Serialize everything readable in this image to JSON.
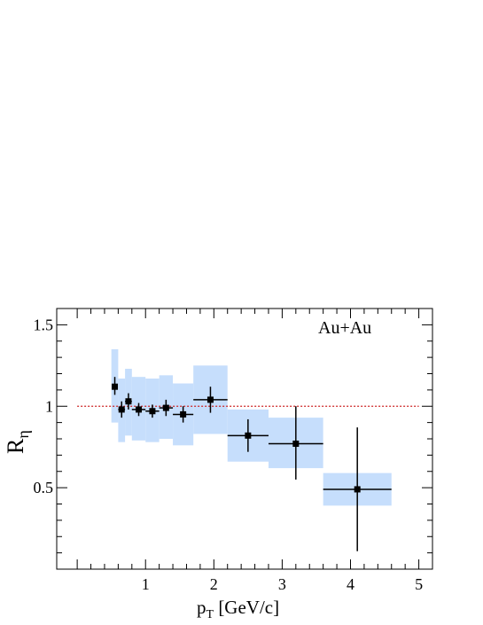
{
  "chart_data": {
    "type": "scatter",
    "annotation": "Au+Au",
    "xlabel_main": "p",
    "xlabel_sub": "T",
    "xlabel_unit": " [GeV/c]",
    "ylabel_main": "R",
    "ylabel_sub": "η",
    "xlim": [
      -0.3,
      5.2
    ],
    "ylim": [
      0.0,
      1.6
    ],
    "x_ticks": [
      1,
      2,
      3,
      4,
      5
    ],
    "x_tick_labels": [
      "1",
      "2",
      "3",
      "4",
      "5"
    ],
    "y_ticks": [
      0.5,
      1,
      1.5
    ],
    "y_tick_labels": [
      "0.5",
      "1",
      "1.5"
    ],
    "reference_line": {
      "y": 1.0,
      "x_from": 0.0,
      "x_to": 5.0,
      "color": "#cc2222"
    },
    "band_color": "#c6defc",
    "marker_color": "#000000",
    "points": [
      {
        "x": 0.55,
        "y": 1.12,
        "xerr": 0.0,
        "yerr_lo": 0.05,
        "yerr_hi": 0.06,
        "sys_lo": 0.9,
        "sys_hi": 1.35,
        "sys_w": 0.05
      },
      {
        "x": 0.65,
        "y": 0.98,
        "xerr": 0.05,
        "yerr_lo": 0.05,
        "yerr_hi": 0.05,
        "sys_lo": 0.78,
        "sys_hi": 1.17,
        "sys_w": 0.05
      },
      {
        "x": 0.75,
        "y": 1.03,
        "xerr": 0.05,
        "yerr_lo": 0.05,
        "yerr_hi": 0.05,
        "sys_lo": 0.82,
        "sys_hi": 1.23,
        "sys_w": 0.05
      },
      {
        "x": 0.9,
        "y": 0.98,
        "xerr": 0.1,
        "yerr_lo": 0.04,
        "yerr_hi": 0.04,
        "sys_lo": 0.79,
        "sys_hi": 1.18,
        "sys_w": 0.1
      },
      {
        "x": 1.1,
        "y": 0.97,
        "xerr": 0.1,
        "yerr_lo": 0.04,
        "yerr_hi": 0.04,
        "sys_lo": 0.78,
        "sys_hi": 1.17,
        "sys_w": 0.1
      },
      {
        "x": 1.3,
        "y": 0.99,
        "xerr": 0.1,
        "yerr_lo": 0.05,
        "yerr_hi": 0.05,
        "sys_lo": 0.8,
        "sys_hi": 1.19,
        "sys_w": 0.1
      },
      {
        "x": 1.55,
        "y": 0.95,
        "xerr": 0.15,
        "yerr_lo": 0.05,
        "yerr_hi": 0.05,
        "sys_lo": 0.76,
        "sys_hi": 1.14,
        "sys_w": 0.15
      },
      {
        "x": 1.95,
        "y": 1.04,
        "xerr": 0.25,
        "yerr_lo": 0.08,
        "yerr_hi": 0.08,
        "sys_lo": 0.83,
        "sys_hi": 1.25,
        "sys_w": 0.25
      },
      {
        "x": 2.5,
        "y": 0.82,
        "xerr": 0.3,
        "yerr_lo": 0.1,
        "yerr_hi": 0.1,
        "sys_lo": 0.66,
        "sys_hi": 0.98,
        "sys_w": 0.3
      },
      {
        "x": 3.2,
        "y": 0.77,
        "xerr": 0.4,
        "yerr_lo": 0.22,
        "yerr_hi": 0.23,
        "sys_lo": 0.62,
        "sys_hi": 0.93,
        "sys_w": 0.4
      },
      {
        "x": 4.1,
        "y": 0.49,
        "xerr": 0.5,
        "yerr_lo": 0.38,
        "yerr_hi": 0.38,
        "sys_lo": 0.39,
        "sys_hi": 0.59,
        "sys_w": 0.5
      }
    ]
  }
}
